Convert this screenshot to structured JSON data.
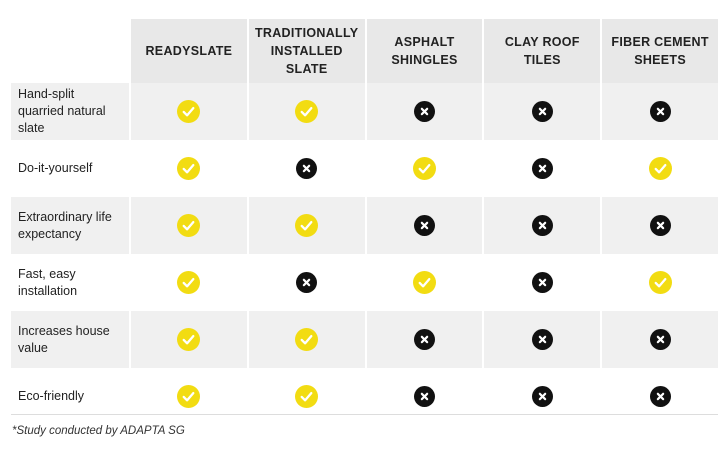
{
  "columns": [
    "READYSLATE",
    "TRADITIONALLY INSTALLED SLATE",
    "ASPHALT SHINGLES",
    "CLAY ROOF TILES",
    "FIBER CEMENT SHEETS"
  ],
  "rows": [
    {
      "label": "Hand-split quarried natural slate",
      "values": [
        true,
        true,
        false,
        false,
        false
      ]
    },
    {
      "label": "Do-it-yourself",
      "values": [
        true,
        false,
        true,
        false,
        true
      ]
    },
    {
      "label": "Extraordinary life expectancy",
      "values": [
        true,
        true,
        false,
        false,
        false
      ]
    },
    {
      "label": "Fast, easy installation",
      "values": [
        true,
        false,
        true,
        false,
        true
      ]
    },
    {
      "label": "Increases house value",
      "values": [
        true,
        true,
        false,
        false,
        false
      ]
    },
    {
      "label": "Eco-friendly",
      "values": [
        true,
        true,
        false,
        false,
        false
      ]
    }
  ],
  "legend": {
    "yes_icon": "check-icon",
    "no_icon": "cross-icon"
  },
  "colors": {
    "yes": "#f2dc12",
    "no": "#111111",
    "header_bg": "#e8e8e8",
    "row_shade": "#f0f0f0"
  },
  "footnote": "*Study conducted by ADAPTA SG"
}
